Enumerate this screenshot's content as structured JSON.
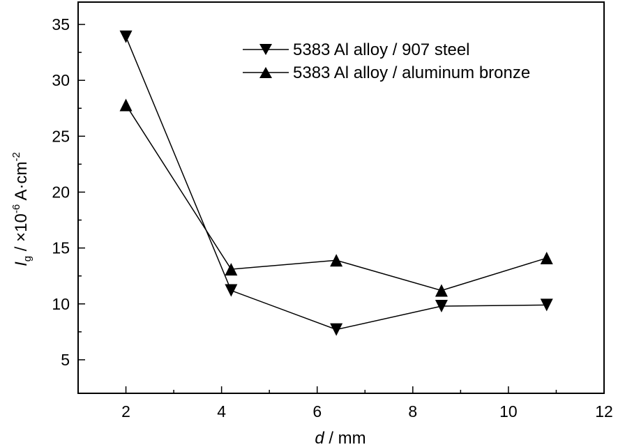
{
  "chart_data": {
    "type": "line",
    "xlabel": {
      "italic": "d",
      "rest": " / mm"
    },
    "ylabel": {
      "italic": "I",
      "sub": "g",
      "mid": " / ×10",
      "sup1": "-6",
      "unit": " A·cm",
      "sup2": "-2"
    },
    "xlim": [
      1,
      12
    ],
    "ylim": [
      2,
      37
    ],
    "xticks": [
      2,
      4,
      6,
      8,
      10,
      12
    ],
    "yticks": [
      5,
      10,
      15,
      20,
      25,
      30,
      35
    ],
    "xticks_minor": [
      3,
      5,
      7,
      9,
      11
    ],
    "yticks_minor": [
      7.5,
      12.5,
      17.5,
      22.5,
      27.5,
      32.5
    ],
    "grid": false,
    "legend_position": "top-right",
    "series": [
      {
        "name": "5383 Al alloy / 907 steel",
        "marker": "triangle-down",
        "color": "#000000",
        "x": [
          2,
          4.2,
          6.4,
          8.6,
          10.8
        ],
        "y": [
          33.9,
          11.2,
          7.7,
          9.8,
          9.9
        ]
      },
      {
        "name": "5383 Al alloy / aluminum bronze",
        "marker": "triangle-up",
        "color": "#000000",
        "x": [
          2,
          4.2,
          6.4,
          8.6,
          10.8
        ],
        "y": [
          27.8,
          13.1,
          13.9,
          11.2,
          14.1
        ]
      }
    ]
  }
}
